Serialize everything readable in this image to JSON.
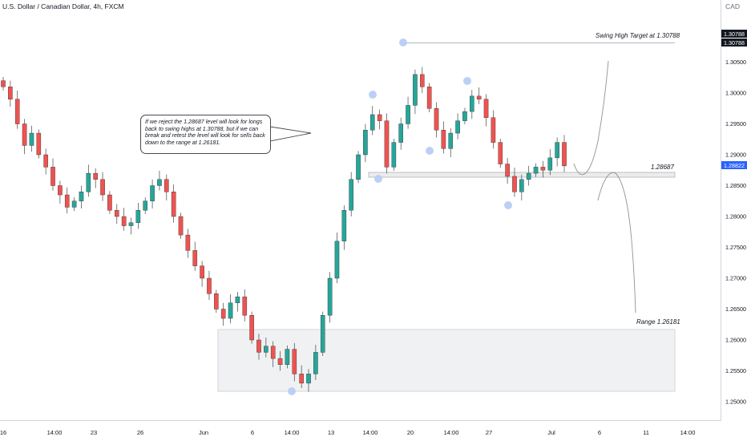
{
  "header": {
    "title": "U.S. Dollar / Canadian Dollar, 4h, FXCM",
    "currency": "CAD"
  },
  "annotations": {
    "note": "If we reject the 1.28687 level will look for longs back to swing highs at 1.30788, but if we can break and retest the level will look for sells back down to the range at 1.26181.",
    "swing_high_label": "Swing High Target at 1.30788",
    "level_label": "1.28687",
    "range_label": "Range 1.26181"
  },
  "price_badges": {
    "swing_high_a": "1.30788",
    "swing_high_b": "1.30788",
    "current": "1.28822"
  },
  "colors": {
    "up": "#26a69a",
    "down": "#ef5350",
    "marker": "#b8cdf5",
    "zone_fill": "#f0f1f3",
    "current_badge": "#2962ff"
  },
  "chart_data": {
    "type": "candlestick",
    "y_ticks": [
      "1.30500",
      "1.30000",
      "1.29500",
      "1.29000",
      "1.28500",
      "1.28000",
      "1.27500",
      "1.27000",
      "1.26500",
      "1.26000",
      "1.25500",
      "1.25000"
    ],
    "x_ticks": [
      "16",
      "14:00",
      "23",
      "26",
      "Jun",
      "6",
      "14:00",
      "13",
      "14:00",
      "20",
      "14:00",
      "27",
      "Jul",
      "6",
      "11",
      "14:00"
    ],
    "series": [
      {
        "close": 1.301
      },
      {
        "close": 1.299
      },
      {
        "close": 1.295
      },
      {
        "close": 1.2915
      },
      {
        "close": 1.2935
      },
      {
        "close": 1.29
      },
      {
        "close": 1.288
      },
      {
        "close": 1.285
      },
      {
        "close": 1.2835
      },
      {
        "close": 1.2815
      },
      {
        "close": 1.2825
      },
      {
        "close": 1.284
      },
      {
        "close": 1.287
      },
      {
        "close": 1.286
      },
      {
        "close": 1.2835
      },
      {
        "close": 1.281
      },
      {
        "close": 1.28
      },
      {
        "close": 1.2785
      },
      {
        "close": 1.279
      },
      {
        "close": 1.281
      },
      {
        "close": 1.2825
      },
      {
        "close": 1.285
      },
      {
        "close": 1.286
      },
      {
        "close": 1.284
      },
      {
        "close": 1.28
      },
      {
        "close": 1.277
      },
      {
        "close": 1.2745
      },
      {
        "close": 1.272
      },
      {
        "close": 1.27
      },
      {
        "close": 1.2675
      },
      {
        "close": 1.265
      },
      {
        "close": 1.2635
      },
      {
        "close": 1.266
      },
      {
        "close": 1.267
      },
      {
        "close": 1.264
      },
      {
        "close": 1.26
      },
      {
        "close": 1.258
      },
      {
        "close": 1.259
      },
      {
        "close": 1.257
      },
      {
        "close": 1.256
      },
      {
        "close": 1.2585
      },
      {
        "close": 1.2545
      },
      {
        "close": 1.253
      },
      {
        "close": 1.2545
      },
      {
        "close": 1.258
      },
      {
        "close": 1.264
      },
      {
        "close": 1.27
      },
      {
        "close": 1.276
      },
      {
        "close": 1.281
      },
      {
        "close": 1.286
      },
      {
        "close": 1.29
      },
      {
        "close": 1.294
      },
      {
        "close": 1.2965
      },
      {
        "close": 1.2955
      },
      {
        "close": 1.288
      },
      {
        "close": 1.292
      },
      {
        "close": 1.295
      },
      {
        "close": 1.298
      },
      {
        "close": 1.303
      },
      {
        "close": 1.301
      },
      {
        "close": 1.2975
      },
      {
        "close": 1.294
      },
      {
        "close": 1.291
      },
      {
        "close": 1.2935
      },
      {
        "close": 1.2955
      },
      {
        "close": 1.297
      },
      {
        "close": 1.2995
      },
      {
        "close": 1.299
      },
      {
        "close": 1.296
      },
      {
        "close": 1.292
      },
      {
        "close": 1.2885
      },
      {
        "close": 1.2865
      },
      {
        "close": 1.284
      },
      {
        "close": 1.286
      },
      {
        "close": 1.287
      },
      {
        "close": 1.288
      },
      {
        "close": 1.2875
      },
      {
        "close": 1.2895
      },
      {
        "close": 1.292
      },
      {
        "close": 1.2882
      }
    ]
  }
}
